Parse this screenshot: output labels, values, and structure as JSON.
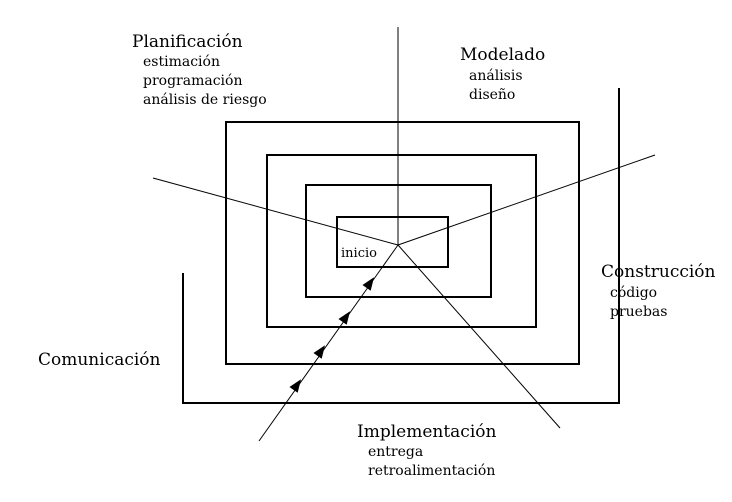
{
  "colors": {
    "line": "#000000",
    "background": "#ffffff"
  },
  "center": {
    "label": "inicio"
  },
  "phases": {
    "planificacion": {
      "title": "Planificación",
      "items": [
        "estimación",
        "programación",
        "análisis de riesgo"
      ]
    },
    "modelado": {
      "title": "Modelado",
      "items": [
        "análisis",
        "diseño"
      ]
    },
    "construccion": {
      "title": "Construcción",
      "items": [
        "código",
        "pruebas"
      ]
    },
    "implementacion": {
      "title": "Implementación",
      "items": [
        "entrega",
        "retroalimentación"
      ]
    },
    "comunicacion": {
      "title": "Comunicación",
      "items": []
    }
  }
}
